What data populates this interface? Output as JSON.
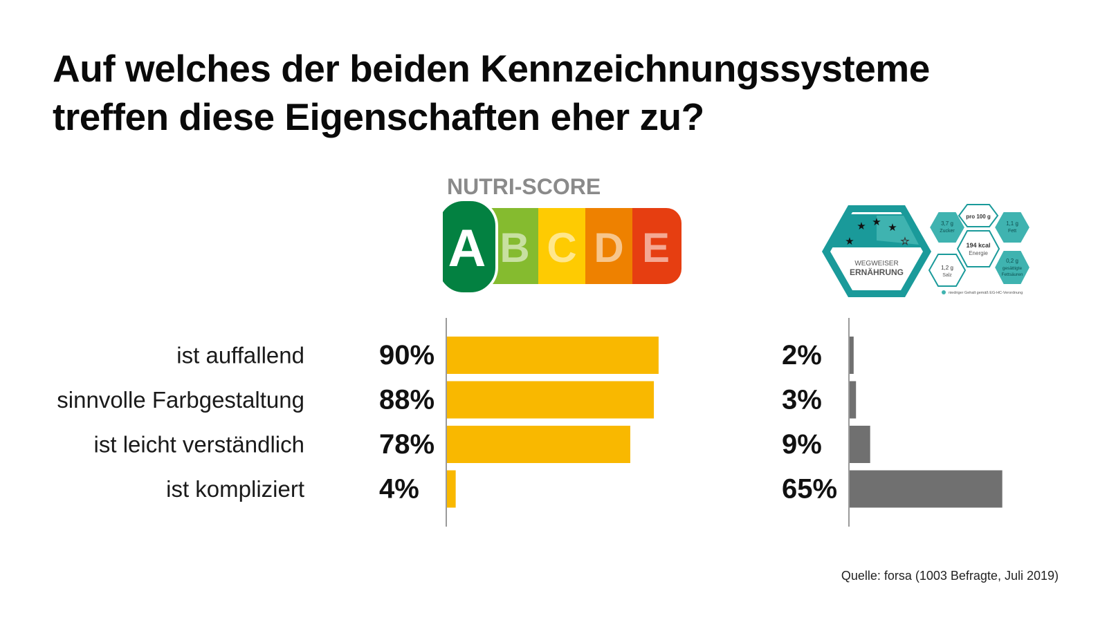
{
  "title": {
    "line1": "Auf welches der beiden Kennzeichnungssysteme",
    "line2": "treffen diese Eigenschaften eher zu?"
  },
  "nutri_score": {
    "heading": "NUTRI-SCORE",
    "letters": [
      "A",
      "B",
      "C",
      "D",
      "E"
    ],
    "colors": [
      "#038141",
      "#85BB2F",
      "#FECB02",
      "#EE8100",
      "#E63E11"
    ]
  },
  "wegweiser": {
    "title_line1": "WEGWEISER",
    "title_line2": "ERNÄHRUNG",
    "stars_filled": 4,
    "stars_total": 5,
    "cells": {
      "zucker_value": "3,7 g",
      "zucker_label": "Zucker",
      "per100": "pro 100 g",
      "fett_value": "1,1 g",
      "fett_label": "Fett",
      "energie_value": "194 kcal",
      "energie_label": "Energie",
      "salz_value": "1,2 g",
      "salz_label": "Salz",
      "fettsaeuren_value": "0,2 g",
      "fettsaeuren_label1": "gesättigte",
      "fettsaeuren_label2": "Fettsäuren"
    },
    "footnote": "niedriger Gehalt gemäß EG-HC-Verordnung",
    "color": "#1A9A9A"
  },
  "chart_data": {
    "type": "bar",
    "orientation": "horizontal",
    "categories": [
      "ist auffallend",
      "sinnvolle Farbgestaltung",
      "ist leicht verständlich",
      "ist kompliziert"
    ],
    "series": [
      {
        "values": [
          90,
          88,
          78,
          4
        ],
        "labels": [
          "90%",
          "88%",
          "78%",
          "4%"
        ],
        "color": "#F9B800"
      },
      {
        "values": [
          2,
          3,
          9,
          65
        ],
        "labels": [
          "2%",
          "3%",
          "9%",
          "65%"
        ],
        "color": "#707070"
      }
    ],
    "xlim": [
      0,
      100
    ],
    "unit": "%",
    "grid": false,
    "legend": "none"
  },
  "source": "Quelle: forsa (1003 Befragte, Juli 2019)"
}
